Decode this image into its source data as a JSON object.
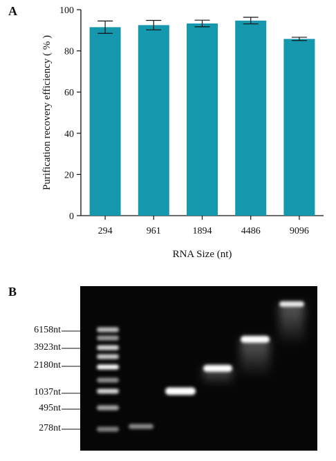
{
  "panel_a_label": "A",
  "panel_b_label": "B",
  "chart_data": {
    "type": "bar",
    "categories": [
      "294",
      "961",
      "1894",
      "4486",
      "9096"
    ],
    "values": [
      91.5,
      92.5,
      93.3,
      94.7,
      85.8
    ],
    "errors": [
      3.0,
      2.3,
      1.6,
      1.6,
      0.8
    ],
    "xlabel": "RNA Size (nt)",
    "ylabel": "Purification recovery efficiency ( % )",
    "ylim": [
      0,
      100
    ],
    "yticks": [
      0,
      20,
      40,
      60,
      80,
      100
    ],
    "bar_color": "#1597ad",
    "grid": false
  },
  "gel": {
    "ladder_labels": [
      "6158nt",
      "3923nt",
      "2180nt",
      "1037nt",
      "495nt",
      "278nt"
    ],
    "background": "#060606"
  }
}
